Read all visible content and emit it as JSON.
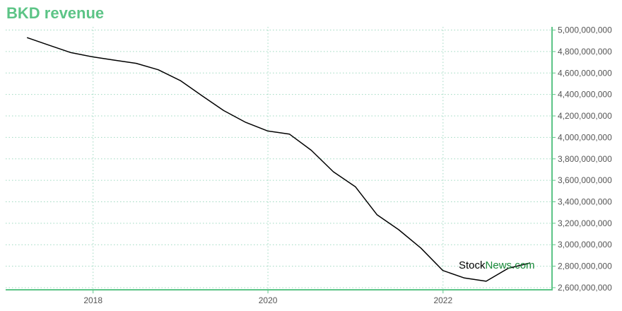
{
  "title": "BKD revenue",
  "watermark": {
    "part1": "Stock",
    "part2": "News.com"
  },
  "colors": {
    "accent": "#5cc486",
    "line": "#000000",
    "grid": "#9ed9c0",
    "watermark_green": "#1a8a3a"
  },
  "chart_data": {
    "type": "line",
    "title": "BKD revenue",
    "xlabel": "",
    "ylabel": "",
    "x_ticks": [
      "2018",
      "2020",
      "2022"
    ],
    "y_ticks": [
      "2,600,000,000",
      "2,800,000,000",
      "3,000,000,000",
      "3,200,000,000",
      "3,400,000,000",
      "3,600,000,000",
      "3,800,000,000",
      "4,000,000,000",
      "4,200,000,000",
      "4,400,000,000",
      "4,600,000,000",
      "4,800,000,000",
      "5,000,000,000"
    ],
    "ylim": [
      2580000000,
      5030000000
    ],
    "xlim": [
      "2017-01-01",
      "2023-04-01"
    ],
    "grid": true,
    "y_axis_position": "right",
    "series": [
      {
        "x": [
          "2017-03-31",
          "2017-06-30",
          "2017-09-30",
          "2017-12-31",
          "2018-03-31",
          "2018-06-30",
          "2018-09-30",
          "2018-12-31",
          "2019-03-31",
          "2019-06-30",
          "2019-09-30",
          "2019-12-31",
          "2020-03-31",
          "2020-06-30",
          "2020-09-30",
          "2020-12-31",
          "2021-03-31",
          "2021-06-30",
          "2021-09-30",
          "2021-12-31",
          "2022-03-31",
          "2022-06-30",
          "2022-09-30",
          "2022-12-31"
        ],
        "values": [
          4930000000,
          4860000000,
          4790000000,
          4750000000,
          4720000000,
          4690000000,
          4630000000,
          4530000000,
          4390000000,
          4250000000,
          4140000000,
          4060000000,
          4030000000,
          3880000000,
          3680000000,
          3540000000,
          3280000000,
          3140000000,
          2970000000,
          2760000000,
          2690000000,
          2660000000,
          2780000000,
          2830000000
        ]
      }
    ]
  }
}
